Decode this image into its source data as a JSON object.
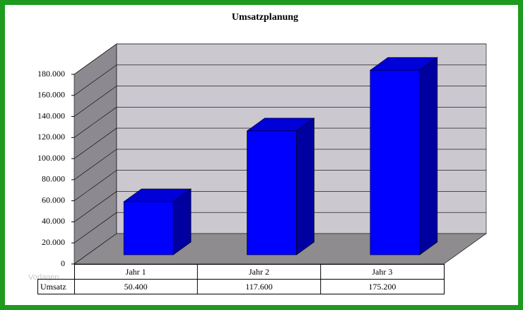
{
  "chart_data": {
    "type": "bar3d",
    "title": "Umsatzplanung",
    "categories": [
      "Jahr 1",
      "Jahr 2",
      "Jahr 3"
    ],
    "series": [
      {
        "name": "Umsatz",
        "color": "#0000ff",
        "values": [
          50400,
          117600,
          175200
        ],
        "value_labels": [
          "50.400",
          "117.600",
          "175.200"
        ]
      }
    ],
    "ylim": [
      0,
      180000
    ],
    "yticks": [
      0,
      {
        "value": 20000,
        "label": "20.000"
      },
      {
        "value": 40000,
        "label": "40.000"
      },
      {
        "value": 60000,
        "label": "60.000"
      },
      {
        "value": 80000,
        "label": "80.000"
      },
      {
        "value": 100000,
        "label": "100.000"
      },
      {
        "value": 120000,
        "label": "120.000"
      },
      {
        "value": 140000,
        "label": "140.000"
      },
      {
        "value": 160000,
        "label": "160.000"
      },
      {
        "value": 180000,
        "label": "180.000"
      }
    ],
    "grid": true,
    "watermark": "Vorlagen"
  }
}
